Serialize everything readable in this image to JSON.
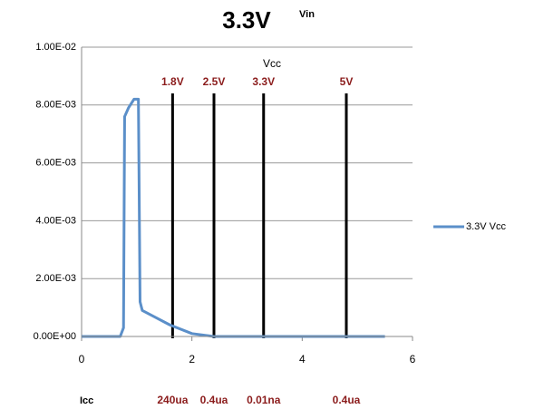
{
  "chart_data": {
    "type": "line",
    "title": "3.3V",
    "subtitle": "Vin",
    "x_annotation": "Vcc",
    "y_annotation": "Icc",
    "x": [
      0,
      0.7,
      0.76,
      0.78,
      0.85,
      0.95,
      1.03,
      1.06,
      1.1,
      1.3,
      1.6,
      2.0,
      2.4,
      5.5
    ],
    "series": [
      {
        "name": "3.3V Vcc",
        "color": "#5b8fc9",
        "values": [
          0,
          0,
          0.0003,
          0.0076,
          0.0079,
          0.0082,
          0.0082,
          0.0012,
          0.0009,
          0.0007,
          0.0004,
          0.0001,
          0,
          0
        ]
      }
    ],
    "xlim": [
      0,
      6
    ],
    "xticks": [
      0,
      2,
      4,
      6
    ],
    "ylim": [
      0,
      0.01
    ],
    "yticks": [
      {
        "value": 0,
        "label": "0.00E+00"
      },
      {
        "value": 0.002,
        "label": "2.00E-03"
      },
      {
        "value": 0.004,
        "label": "4.00E-03"
      },
      {
        "value": 0.006,
        "label": "6.00E-03"
      },
      {
        "value": 0.008,
        "label": "8.00E-03"
      },
      {
        "value": 0.01,
        "label": "1.00E-02"
      }
    ],
    "grid": true,
    "legend": "right",
    "markers": [
      {
        "x": 1.65,
        "top": "1.8V",
        "bottom": "240ua"
      },
      {
        "x": 2.4,
        "top": "2.5V",
        "bottom": "0.4ua"
      },
      {
        "x": 3.3,
        "top": "3.3V",
        "bottom": "0.01na"
      },
      {
        "x": 4.8,
        "top": "5V",
        "bottom": "0.4ua"
      }
    ]
  }
}
